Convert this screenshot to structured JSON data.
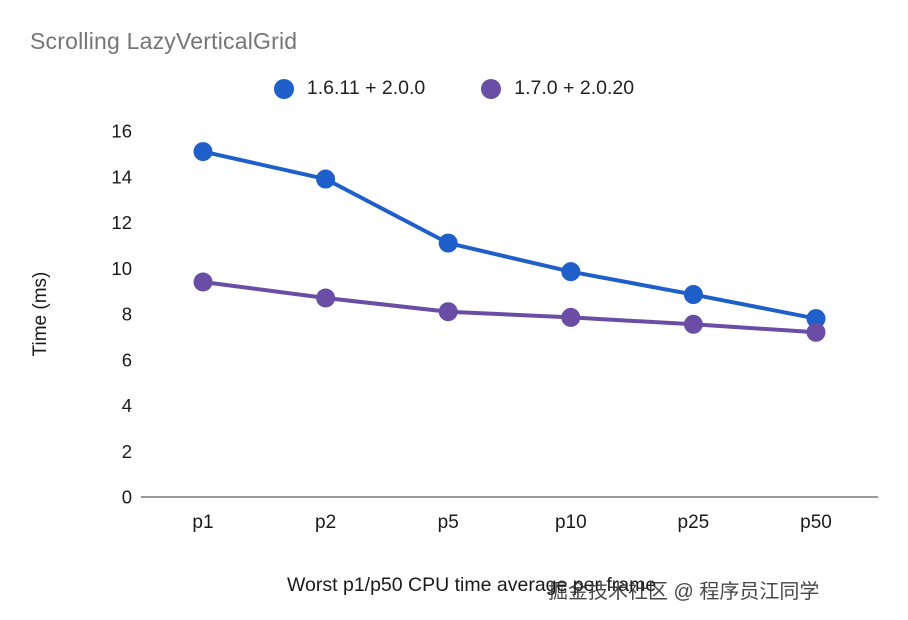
{
  "page": {
    "watermark": "掘金技术社区 @ 程序员江同学"
  },
  "chart_data": {
    "type": "line",
    "title": "Scrolling LazyVerticalGrid",
    "xlabel": "Worst p1/p50 CPU time average per frame",
    "ylabel": "Time (ms)",
    "categories": [
      "p1",
      "p2",
      "p5",
      "p10",
      "p25",
      "p50"
    ],
    "series": [
      {
        "name": "1.6.11 + 2.0.0",
        "color": "#1e5fc9",
        "values": [
          15.1,
          13.9,
          11.1,
          9.85,
          8.85,
          7.8
        ]
      },
      {
        "name": "1.7.0 + 2.0.20",
        "color": "#6a4da5",
        "values": [
          9.4,
          8.7,
          8.1,
          7.85,
          7.55,
          7.2
        ]
      }
    ],
    "ylim": [
      0,
      16
    ],
    "ytick_step": 2,
    "grid": false,
    "legend_position": "top",
    "colors": {
      "title_text": "#757575",
      "axis_text": "#1a1a1a",
      "baseline": "#333333",
      "watermark_text": "#2e2e2e"
    }
  }
}
